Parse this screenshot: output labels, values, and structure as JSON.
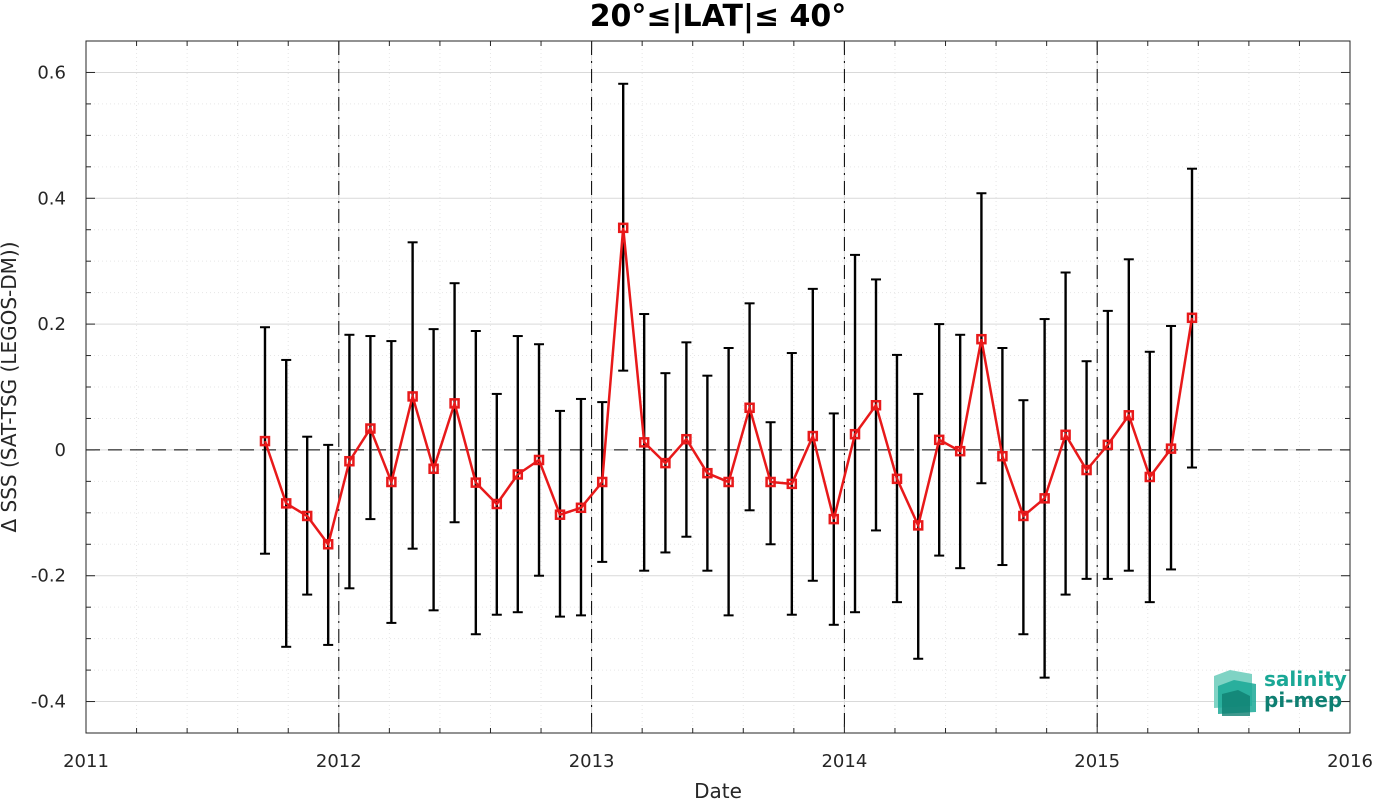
{
  "chart_data": {
    "type": "line",
    "title": "20°≤|LAT|≤ 40°",
    "xlabel": "Date",
    "ylabel": "Δ SSS (SAT-TSG (LEGOS-DM))",
    "xlim": [
      2011,
      2016
    ],
    "ylim": [
      -0.45,
      0.65
    ],
    "x_ticks": [
      "2011",
      "2012",
      "2013",
      "2014",
      "2015",
      "2016"
    ],
    "y_ticks": [
      "-0.4",
      "-0.2",
      "0",
      "0.2",
      "0.4",
      "0.6"
    ],
    "grid": true,
    "year_dividers": [
      2012,
      2013,
      2014,
      2015
    ],
    "zero_line": 0,
    "series": [
      {
        "color": "#e8191a",
        "marker": "square",
        "x": [
          2011.708,
          2011.792,
          2011.875,
          2011.958,
          2012.042,
          2012.125,
          2012.208,
          2012.292,
          2012.375,
          2012.458,
          2012.542,
          2012.625,
          2012.708,
          2012.792,
          2012.875,
          2012.958,
          2013.042,
          2013.125,
          2013.208,
          2013.292,
          2013.375,
          2013.458,
          2013.542,
          2013.625,
          2013.708,
          2013.792,
          2013.875,
          2013.958,
          2014.042,
          2014.125,
          2014.208,
          2014.292,
          2014.375,
          2014.458,
          2014.542,
          2014.625,
          2014.708,
          2014.792,
          2014.875,
          2014.958,
          2015.042,
          2015.125,
          2015.208,
          2015.292,
          2015.375
        ],
        "y": [
          0.014,
          -0.085,
          -0.105,
          -0.15,
          -0.018,
          0.034,
          -0.051,
          0.085,
          -0.03,
          0.074,
          -0.052,
          -0.086,
          -0.039,
          -0.016,
          -0.103,
          -0.092,
          -0.051,
          0.353,
          0.012,
          -0.021,
          0.017,
          -0.037,
          -0.051,
          0.067,
          -0.051,
          -0.054,
          0.022,
          -0.11,
          0.025,
          0.071,
          -0.046,
          -0.12,
          0.016,
          -0.002,
          0.176,
          -0.01,
          -0.105,
          -0.077,
          0.024,
          -0.032,
          0.008,
          0.055,
          -0.043,
          0.002,
          0.21
        ],
        "err_low": [
          -0.165,
          -0.313,
          -0.23,
          -0.31,
          -0.22,
          -0.11,
          -0.275,
          -0.157,
          -0.255,
          -0.115,
          -0.293,
          -0.262,
          -0.258,
          -0.2,
          -0.265,
          -0.263,
          -0.178,
          0.126,
          -0.192,
          -0.163,
          -0.138,
          -0.192,
          -0.263,
          -0.096,
          -0.15,
          -0.262,
          -0.208,
          -0.278,
          -0.258,
          -0.128,
          -0.242,
          -0.332,
          -0.168,
          -0.188,
          -0.053,
          -0.183,
          -0.293,
          -0.362,
          -0.23,
          -0.205,
          -0.205,
          -0.192,
          -0.242,
          -0.19,
          -0.028
        ],
        "err_high": [
          0.195,
          0.143,
          0.021,
          0.008,
          0.183,
          0.181,
          0.173,
          0.33,
          0.192,
          0.265,
          0.189,
          0.089,
          0.181,
          0.168,
          0.062,
          0.081,
          0.076,
          0.582,
          0.216,
          0.122,
          0.171,
          0.118,
          0.162,
          0.233,
          0.044,
          0.154,
          0.256,
          0.058,
          0.31,
          0.271,
          0.151,
          0.089,
          0.2,
          0.183,
          0.408,
          0.162,
          0.079,
          0.208,
          0.282,
          0.141,
          0.221,
          0.303,
          0.156,
          0.197,
          0.447
        ]
      }
    ]
  },
  "logo": {
    "line1": "salinity",
    "line2": "pi-mep",
    "colors": [
      "#1aa896",
      "#7fd3c4",
      "#0f7f72"
    ]
  },
  "colors": {
    "axis": "#262626",
    "grid": "#dcdcdc",
    "errorbar": "#000000"
  }
}
